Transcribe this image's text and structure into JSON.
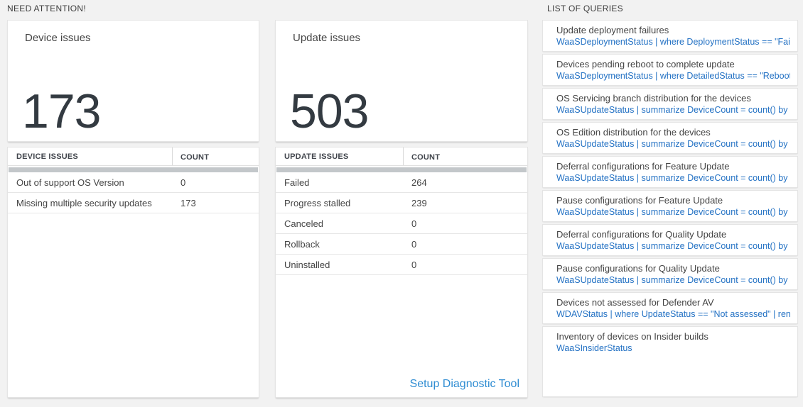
{
  "colors": {
    "page_background": "#f2f2f2",
    "card_background": "#ffffff",
    "big_number_color": "#333a41",
    "query_blue": "#2472c4",
    "link_blue": "#2e8cd2",
    "scrollbar_gray": "#c3c7ca"
  },
  "need_attention": {
    "section_title": "NEED ATTENTION!",
    "device_tile": {
      "title": "Device issues",
      "count": "173"
    },
    "device_table": {
      "col_issue": "DEVICE ISSUES",
      "col_count": "COUNT",
      "rows": [
        {
          "label": "Out of support OS Version",
          "count": "0"
        },
        {
          "label": "Missing multiple security updates",
          "count": "173"
        }
      ]
    },
    "update_tile": {
      "title": "Update issues",
      "count": "503"
    },
    "update_table": {
      "col_issue": "UPDATE ISSUES",
      "col_count": "COUNT",
      "rows": [
        {
          "label": "Failed",
          "count": "264"
        },
        {
          "label": "Progress stalled",
          "count": "239"
        },
        {
          "label": "Canceled",
          "count": "0"
        },
        {
          "label": "Rollback",
          "count": "0"
        },
        {
          "label": "Uninstalled",
          "count": "0"
        }
      ],
      "footer_link": "Setup Diagnostic Tool"
    }
  },
  "queries": {
    "section_title": "LIST OF QUERIES",
    "items": [
      {
        "title": "Update deployment failures",
        "query": "WaaSDeploymentStatus | where DeploymentStatus == \"Failed\" |..."
      },
      {
        "title": "Devices pending reboot to complete update",
        "query": "WaaSDeploymentStatus | where DetailedStatus == \"Reboot pend..."
      },
      {
        "title": "OS Servicing branch distribution for the devices",
        "query": "WaaSUpdateStatus | summarize DeviceCount = count() by OSSer..."
      },
      {
        "title": "OS Edition distribution for the devices",
        "query": "WaaSUpdateStatus | summarize DeviceCount = count() by OSEdit..."
      },
      {
        "title": "Deferral configurations for Feature Update",
        "query": "WaaSUpdateStatus | summarize DeviceCount = count() by Featur..."
      },
      {
        "title": "Pause configurations for Feature Update",
        "query": "WaaSUpdateStatus | summarize DeviceCount = count() by Featur..."
      },
      {
        "title": "Deferral configurations for Quality Update",
        "query": "WaaSUpdateStatus | summarize DeviceCount = count() by Qualit..."
      },
      {
        "title": "Pause configurations for Quality Update",
        "query": "WaaSUpdateStatus | summarize DeviceCount = count() by Qualit..."
      },
      {
        "title": "Devices not assessed for Defender AV",
        "query": "WDAVStatus | where UpdateStatus == \"Not assessed\" | render ta..."
      },
      {
        "title": "Inventory of devices on Insider builds",
        "query": "WaaSInsiderStatus"
      }
    ]
  }
}
